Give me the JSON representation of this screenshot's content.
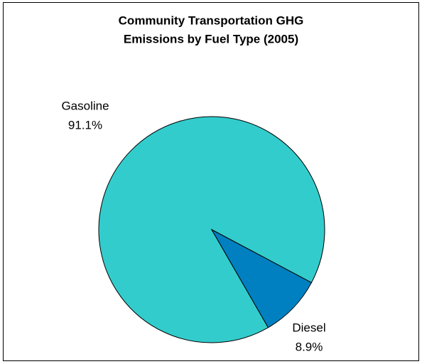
{
  "chart_data": {
    "type": "pie",
    "title": [
      "Community Transportation GHG",
      "Emissions by Fuel Type (2005)"
    ],
    "categories": [
      "Gasoline",
      "Diesel"
    ],
    "values": [
      91.1,
      8.9
    ],
    "value_labels": [
      "91.1%",
      "8.9%"
    ],
    "colors": [
      "#33cccc",
      "#0080c0"
    ]
  }
}
